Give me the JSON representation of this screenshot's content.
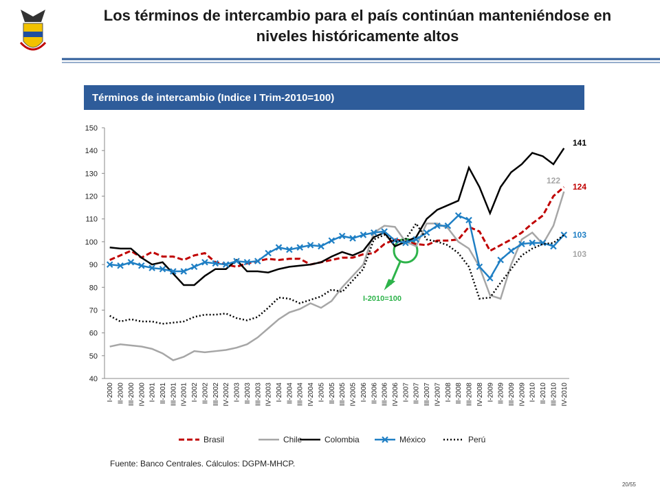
{
  "slide": {
    "title_lines": [
      "Los términos de intercambio para el país continúan manteniéndose en",
      "niveles históricamente altos"
    ],
    "source": "Fuente: Banco Centrales. Cálculos: DGPM-MHCP.",
    "page": "20/55"
  },
  "chart_data": {
    "type": "line",
    "title": "Términos de intercambio (Indice I Trim-2010=100)",
    "categories": [
      "I-2000",
      "II-2000",
      "III-2000",
      "IV-2000",
      "I-2001",
      "II-2001",
      "III-2001",
      "IV-2001",
      "I-2002",
      "II-2002",
      "III-2002",
      "IV-2002",
      "I-2003",
      "II-2003",
      "III-2003",
      "IV-2003",
      "I-2004",
      "II-2004",
      "III-2004",
      "IV-2004",
      "I-2005",
      "II-2005",
      "III-2005",
      "IV-2005",
      "I-2006",
      "II-2006",
      "III-2006",
      "IV-2006",
      "I-2007",
      "II-2007",
      "III-2007",
      "IV-2007",
      "I-2008",
      "II-2008",
      "III-2008",
      "IV-2008",
      "I-2009",
      "II-2009",
      "III-2009",
      "IV-2009",
      "I-2010",
      "II-2010",
      "III-2010",
      "IV-2010"
    ],
    "ylim": [
      40,
      150
    ],
    "yticks": [
      40,
      50,
      60,
      70,
      80,
      90,
      100,
      110,
      120,
      130,
      140,
      150
    ],
    "annotation": "I-2010=100",
    "annotation_color": "#2db34a",
    "series": [
      {
        "name": "Brasil",
        "color": "#c00000",
        "style": "dashed",
        "label_color": "#c00000",
        "values": [
          92,
          94,
          96,
          93,
          95.5,
          93.5,
          93.5,
          92,
          94,
          95,
          91,
          90,
          89,
          90.5,
          91.5,
          92.5,
          92,
          92.5,
          92.5,
          90,
          91,
          92,
          93,
          93,
          94.5,
          95,
          99,
          101,
          100,
          99,
          98.5,
          100.5,
          100.5,
          101,
          106.5,
          104.5,
          96,
          98.5,
          101,
          104,
          108,
          111.5,
          120,
          124
        ]
      },
      {
        "name": "Chile",
        "color": "#a6a6a6",
        "style": "solid",
        "label_color": "#a6a6a6",
        "values": [
          54,
          55,
          54.5,
          54,
          53,
          51,
          48,
          49.5,
          52,
          51.5,
          52,
          52.5,
          53.5,
          55,
          58,
          62,
          66,
          69,
          70.5,
          73,
          71,
          74,
          80,
          85,
          90,
          104,
          107,
          106.5,
          100,
          98,
          108,
          108,
          106,
          100,
          97,
          89,
          76.5,
          75,
          90,
          101,
          104,
          99,
          107,
          122
        ]
      },
      {
        "name": "Colombia",
        "color": "#000000",
        "style": "solid",
        "label_color": "#000000",
        "values": [
          97.5,
          97,
          97,
          93,
          90,
          91,
          86,
          81,
          81,
          85,
          88,
          88,
          92,
          87,
          87,
          86.5,
          88,
          89,
          89.5,
          90,
          91,
          93.5,
          95.5,
          94,
          96,
          102,
          104,
          98,
          100,
          102,
          110,
          114,
          116,
          118,
          132.5,
          124,
          112.5,
          124,
          130.5,
          134,
          139,
          137.5,
          134,
          141
        ]
      },
      {
        "name": "México",
        "color": "#1f7fc4",
        "style": "solid",
        "marker": "x",
        "label_color": "#1f7fc4",
        "values": [
          90,
          89.5,
          91,
          89.5,
          88.5,
          88,
          87,
          87,
          89,
          91,
          90.5,
          90,
          91.5,
          91,
          91.5,
          95,
          97.5,
          96.5,
          97.5,
          98.5,
          98,
          100.5,
          102.5,
          101.5,
          103,
          104,
          104.5,
          100.5,
          99.5,
          101,
          104,
          107,
          107,
          111.5,
          109.5,
          89,
          84,
          92,
          96,
          99,
          99.5,
          99.5,
          98,
          103
        ]
      },
      {
        "name": "Perú",
        "color": "#000000",
        "style": "dotted",
        "label_color": "#a6a6a6",
        "values": [
          67.5,
          65,
          66,
          65,
          65,
          64,
          64.5,
          65,
          67,
          68,
          68,
          68.5,
          66.5,
          65.5,
          67,
          71,
          75.5,
          75,
          73,
          74.5,
          76,
          79,
          78,
          83,
          88,
          101,
          103,
          100,
          101,
          108,
          101,
          100,
          98.5,
          95,
          89,
          75,
          75.5,
          82,
          88,
          94,
          97,
          99,
          99.5,
          103
        ]
      }
    ]
  }
}
